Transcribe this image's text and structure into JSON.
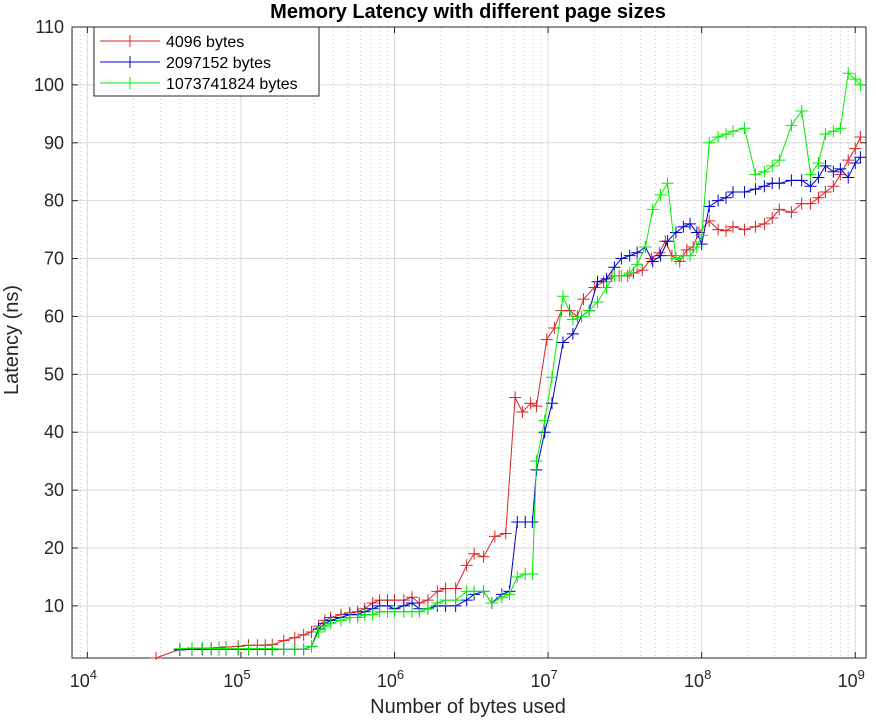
{
  "chart_data": {
    "type": "line",
    "title": "Memory Latency with different page sizes",
    "xlabel": "Number of bytes used",
    "ylabel": "Latency (ns)",
    "xscale": "log",
    "xlim": [
      10000,
      1000000000
    ],
    "ylim": [
      1,
      110
    ],
    "x_tick_labels": [
      {
        "base": "10",
        "exp": "4",
        "value": 10000
      },
      {
        "base": "10",
        "exp": "5",
        "value": 100000
      },
      {
        "base": "10",
        "exp": "6",
        "value": 1000000
      },
      {
        "base": "10",
        "exp": "7",
        "value": 10000000
      },
      {
        "base": "10",
        "exp": "8",
        "value": 100000000
      },
      {
        "base": "10",
        "exp": "9",
        "value": 1000000000
      }
    ],
    "y_ticks": [
      10,
      20,
      30,
      40,
      50,
      60,
      70,
      80,
      90,
      100,
      110
    ],
    "y_tick_labels": [
      "10",
      "20",
      "30",
      "40",
      "50",
      "60",
      "70",
      "80",
      "90",
      "100",
      "110"
    ],
    "grid": true,
    "legend_position": "top-left",
    "series": [
      {
        "name": "4096 bytes",
        "color": "#d62728",
        "points": [
          [
            28000,
            1.0
          ],
          [
            40000,
            2.5
          ],
          [
            48000,
            2.7
          ],
          [
            56000,
            2.7
          ],
          [
            64000,
            2.7
          ],
          [
            72000,
            2.8
          ],
          [
            80000,
            2.9
          ],
          [
            96000,
            3.0
          ],
          [
            112000,
            3.2
          ],
          [
            128000,
            3.2
          ],
          [
            144000,
            3.2
          ],
          [
            160000,
            3.3
          ],
          [
            190000,
            4.0
          ],
          [
            224000,
            4.5
          ],
          [
            256000,
            5.0
          ],
          [
            288000,
            5.5
          ],
          [
            320000,
            6.5
          ],
          [
            352000,
            7.5
          ],
          [
            384000,
            8.0
          ],
          [
            448000,
            8.5
          ],
          [
            512000,
            8.8
          ],
          [
            576000,
            9.0
          ],
          [
            640000,
            9.5
          ],
          [
            720000,
            10.5
          ],
          [
            800000,
            11.0
          ],
          [
            900000,
            11.0
          ],
          [
            1000000,
            11.0
          ],
          [
            1150000,
            11.0
          ],
          [
            1300000,
            11.5
          ],
          [
            1450000,
            10.5
          ],
          [
            1650000,
            11.0
          ],
          [
            1900000,
            12.5
          ],
          [
            2150000,
            13.0
          ],
          [
            2500000,
            13.0
          ],
          [
            2950000,
            17.0
          ],
          [
            3300000,
            19.0
          ],
          [
            3800000,
            18.5
          ],
          [
            4500000,
            22.0
          ],
          [
            5300000,
            22.5
          ],
          [
            6100000,
            46.0
          ],
          [
            6800000,
            43.5
          ],
          [
            7700000,
            45.0
          ],
          [
            8400000,
            44.5
          ],
          [
            9800000,
            56.0
          ],
          [
            11000000,
            58.0
          ],
          [
            12200000,
            61.0
          ],
          [
            13800000,
            61.0
          ],
          [
            15500000,
            60.0
          ],
          [
            17000000,
            63.0
          ],
          [
            20000000,
            65.0
          ],
          [
            23000000,
            66.0
          ],
          [
            26000000,
            67.0
          ],
          [
            29000000,
            67.0
          ],
          [
            33000000,
            67.0
          ],
          [
            36000000,
            67.5
          ],
          [
            41000000,
            68.0
          ],
          [
            47000000,
            70.0
          ],
          [
            53000000,
            71.0
          ],
          [
            58000000,
            73.0
          ],
          [
            64000000,
            70.5
          ],
          [
            72000000,
            69.5
          ],
          [
            80000000,
            71.5
          ],
          [
            88000000,
            72.0
          ],
          [
            96000000,
            74.5
          ],
          [
            112000000,
            76.5
          ],
          [
            128000000,
            75.0
          ],
          [
            144000000,
            74.8
          ],
          [
            160000000,
            75.5
          ],
          [
            190000000,
            75.0
          ],
          [
            224000000,
            75.5
          ],
          [
            256000000,
            76.0
          ],
          [
            288000000,
            77.0
          ],
          [
            320000000,
            78.5
          ],
          [
            384000000,
            78.0
          ],
          [
            448000000,
            79.5
          ],
          [
            512000000,
            79.5
          ],
          [
            576000000,
            80.5
          ],
          [
            640000000,
            81.5
          ],
          [
            720000000,
            82.5
          ],
          [
            800000000,
            84.5
          ],
          [
            900000000,
            87.0
          ],
          [
            1000000000,
            89.0
          ],
          [
            1080000000,
            91.0
          ]
        ]
      },
      {
        "name": "2097152 bytes",
        "color": "#0000cc",
        "points": [
          [
            40000,
            2.4
          ],
          [
            48000,
            2.5
          ],
          [
            56000,
            2.5
          ],
          [
            64000,
            2.5
          ],
          [
            72000,
            2.5
          ],
          [
            80000,
            2.5
          ],
          [
            96000,
            2.5
          ],
          [
            112000,
            2.5
          ],
          [
            128000,
            2.5
          ],
          [
            144000,
            2.5
          ],
          [
            160000,
            2.5
          ],
          [
            190000,
            2.5
          ],
          [
            224000,
            2.5
          ],
          [
            256000,
            2.5
          ],
          [
            288000,
            3.0
          ],
          [
            320000,
            6.0
          ],
          [
            352000,
            7.0
          ],
          [
            384000,
            7.5
          ],
          [
            448000,
            8.0
          ],
          [
            512000,
            8.5
          ],
          [
            576000,
            8.5
          ],
          [
            640000,
            9.0
          ],
          [
            720000,
            9.5
          ],
          [
            800000,
            10.0
          ],
          [
            900000,
            10.0
          ],
          [
            1000000,
            9.5
          ],
          [
            1150000,
            10.0
          ],
          [
            1300000,
            10.5
          ],
          [
            1450000,
            9.5
          ],
          [
            1650000,
            9.5
          ],
          [
            1900000,
            10.0
          ],
          [
            2150000,
            10.0
          ],
          [
            2500000,
            10.0
          ],
          [
            2950000,
            11.0
          ],
          [
            3300000,
            12.0
          ],
          [
            3800000,
            12.5
          ],
          [
            4300000,
            10.5
          ],
          [
            5000000,
            12.0
          ],
          [
            5600000,
            12.5
          ],
          [
            6300000,
            24.5
          ],
          [
            7100000,
            24.5
          ],
          [
            7900000,
            24.5
          ],
          [
            8400000,
            33.5
          ],
          [
            9500000,
            40.0
          ],
          [
            10600000,
            45.0
          ],
          [
            12500000,
            55.5
          ],
          [
            14500000,
            57.0
          ],
          [
            16500000,
            60.0
          ],
          [
            18500000,
            61.0
          ],
          [
            21000000,
            66.0
          ],
          [
            24000000,
            66.5
          ],
          [
            27000000,
            68.5
          ],
          [
            30000000,
            70.0
          ],
          [
            34000000,
            70.5
          ],
          [
            38000000,
            71.0
          ],
          [
            43000000,
            72.0
          ],
          [
            48000000,
            69.5
          ],
          [
            54000000,
            70.5
          ],
          [
            60000000,
            73.0
          ],
          [
            68000000,
            74.5
          ],
          [
            76000000,
            75.5
          ],
          [
            84000000,
            76.0
          ],
          [
            93000000,
            74.5
          ],
          [
            100000000,
            72.5
          ],
          [
            112000000,
            79.0
          ],
          [
            128000000,
            80.0
          ],
          [
            144000000,
            80.5
          ],
          [
            160000000,
            81.5
          ],
          [
            190000000,
            81.5
          ],
          [
            224000000,
            82.0
          ],
          [
            256000000,
            82.5
          ],
          [
            288000000,
            83.0
          ],
          [
            320000000,
            83.0
          ],
          [
            384000000,
            83.5
          ],
          [
            448000000,
            83.5
          ],
          [
            512000000,
            82.5
          ],
          [
            576000000,
            84.0
          ],
          [
            640000000,
            86.0
          ],
          [
            720000000,
            85.0
          ],
          [
            800000000,
            85.5
          ],
          [
            900000000,
            84.0
          ],
          [
            1000000000,
            86.5
          ],
          [
            1080000000,
            87.5
          ]
        ]
      },
      {
        "name": "1073741824 bytes",
        "color": "#00ee00",
        "points": [
          [
            40000,
            2.6
          ],
          [
            48000,
            2.7
          ],
          [
            56000,
            2.7
          ],
          [
            64000,
            2.6
          ],
          [
            72000,
            2.6
          ],
          [
            80000,
            2.6
          ],
          [
            96000,
            2.6
          ],
          [
            112000,
            2.6
          ],
          [
            128000,
            2.6
          ],
          [
            144000,
            2.6
          ],
          [
            160000,
            2.6
          ],
          [
            190000,
            2.5
          ],
          [
            224000,
            2.5
          ],
          [
            256000,
            2.5
          ],
          [
            288000,
            3.0
          ],
          [
            320000,
            5.5
          ],
          [
            352000,
            6.5
          ],
          [
            384000,
            7.0
          ],
          [
            448000,
            7.5
          ],
          [
            512000,
            8.0
          ],
          [
            576000,
            8.0
          ],
          [
            640000,
            8.5
          ],
          [
            720000,
            8.5
          ],
          [
            800000,
            9.0
          ],
          [
            900000,
            9.0
          ],
          [
            1000000,
            9.0
          ],
          [
            1150000,
            9.0
          ],
          [
            1300000,
            9.0
          ],
          [
            1450000,
            9.0
          ],
          [
            1650000,
            9.5
          ],
          [
            1900000,
            10.5
          ],
          [
            2150000,
            11.0
          ],
          [
            2500000,
            11.0
          ],
          [
            2950000,
            12.5
          ],
          [
            3300000,
            12.5
          ],
          [
            3800000,
            12.5
          ],
          [
            4300000,
            10.5
          ],
          [
            5000000,
            11.5
          ],
          [
            5600000,
            12.0
          ],
          [
            6300000,
            15.0
          ],
          [
            7100000,
            15.5
          ],
          [
            7900000,
            15.5
          ],
          [
            8400000,
            35.0
          ],
          [
            9500000,
            42.0
          ],
          [
            10600000,
            49.5
          ],
          [
            12500000,
            63.5
          ],
          [
            14500000,
            59.5
          ],
          [
            16500000,
            60.0
          ],
          [
            18500000,
            61.0
          ],
          [
            21000000,
            62.5
          ],
          [
            24000000,
            65.0
          ],
          [
            27000000,
            67.0
          ],
          [
            30000000,
            67.0
          ],
          [
            34000000,
            67.5
          ],
          [
            38000000,
            69.0
          ],
          [
            43000000,
            72.0
          ],
          [
            48000000,
            78.5
          ],
          [
            54000000,
            81.0
          ],
          [
            60000000,
            83.0
          ],
          [
            68000000,
            70.0
          ],
          [
            76000000,
            70.5
          ],
          [
            84000000,
            70.5
          ],
          [
            93000000,
            72.0
          ],
          [
            100000000,
            74.0
          ],
          [
            112000000,
            90.0
          ],
          [
            128000000,
            91.0
          ],
          [
            144000000,
            91.5
          ],
          [
            160000000,
            92.0
          ],
          [
            190000000,
            92.5
          ],
          [
            224000000,
            84.5
          ],
          [
            256000000,
            85.0
          ],
          [
            288000000,
            86.0
          ],
          [
            320000000,
            87.0
          ],
          [
            384000000,
            93.0
          ],
          [
            448000000,
            95.5
          ],
          [
            512000000,
            84.5
          ],
          [
            576000000,
            86.5
          ],
          [
            640000000,
            91.5
          ],
          [
            720000000,
            92.0
          ],
          [
            800000000,
            92.5
          ],
          [
            900000000,
            102.0
          ],
          [
            1000000000,
            101.0
          ],
          [
            1080000000,
            100.0
          ]
        ]
      }
    ]
  }
}
